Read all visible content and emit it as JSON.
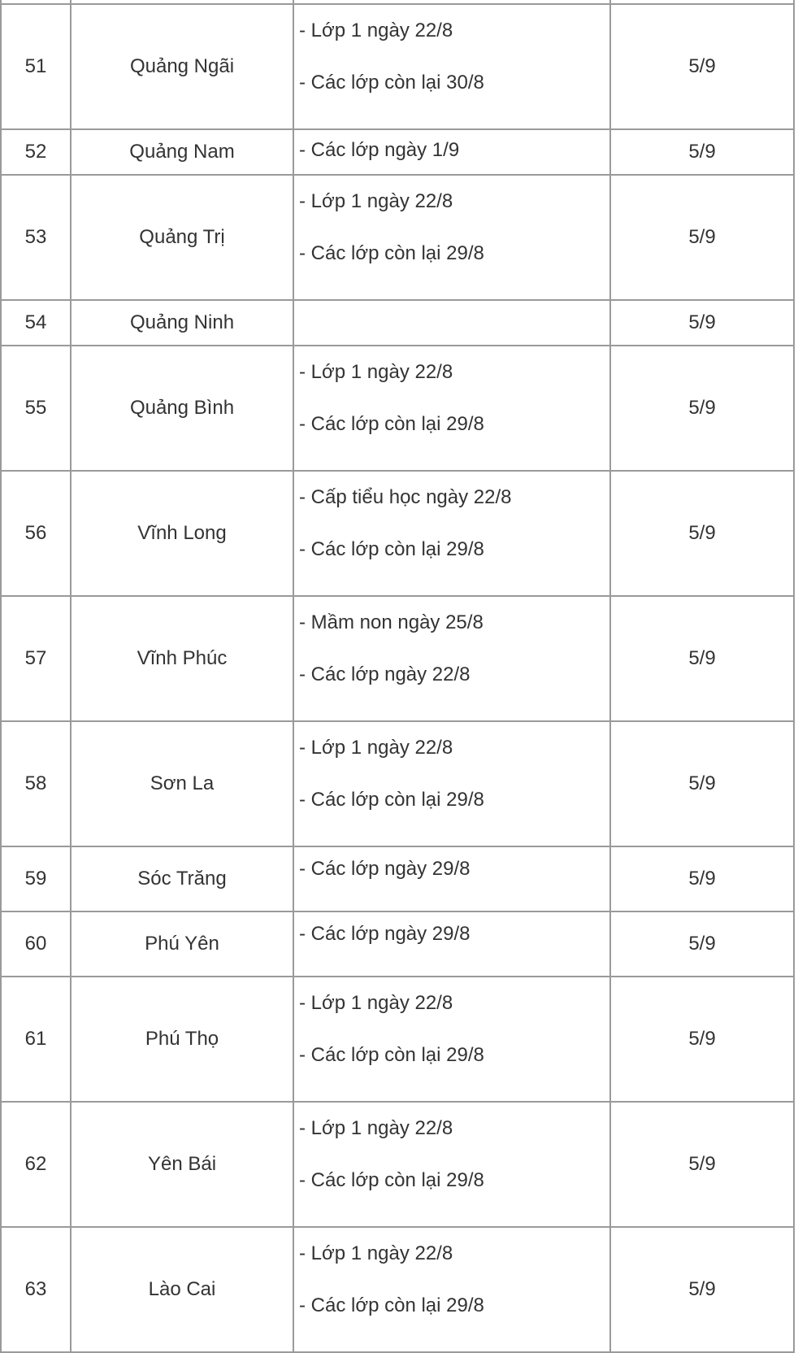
{
  "table": {
    "rows": [
      {
        "no": "51",
        "province": "Quảng Ngãi",
        "student_return": [
          "- Lớp 1 ngày 22/8",
          "- Các lớp còn lại 30/8"
        ],
        "opening": "5/9"
      },
      {
        "no": "52",
        "province": "Quảng Nam",
        "student_return": [
          "- Các lớp ngày 1/9"
        ],
        "opening": "5/9"
      },
      {
        "no": "53",
        "province": "Quảng Trị",
        "student_return": [
          "- Lớp 1 ngày 22/8",
          "- Các lớp còn lại 29/8"
        ],
        "opening": "5/9"
      },
      {
        "no": "54",
        "province": "Quảng Ninh",
        "student_return": [],
        "opening": "5/9"
      },
      {
        "no": "55",
        "province": "Quảng Bình",
        "student_return": [
          "- Lớp 1 ngày 22/8",
          "- Các lớp còn lại 29/8"
        ],
        "opening": "5/9"
      },
      {
        "no": "56",
        "province": "Vĩnh Long",
        "student_return": [
          "- Cấp tiểu học ngày 22/8",
          "- Các lớp còn lại 29/8"
        ],
        "opening": "5/9"
      },
      {
        "no": "57",
        "province": "Vĩnh Phúc",
        "student_return": [
          "- Mầm non ngày 25/8",
          "- Các lớp ngày 22/8"
        ],
        "opening": "5/9"
      },
      {
        "no": "58",
        "province": "Sơn La",
        "student_return": [
          "- Lớp 1 ngày 22/8",
          "- Các lớp còn lại 29/8"
        ],
        "opening": "5/9"
      },
      {
        "no": "59",
        "province": "Sóc Trăng",
        "student_return": [
          "- Các lớp ngày 29/8"
        ],
        "opening": "5/9"
      },
      {
        "no": "60",
        "province": "Phú Yên",
        "student_return": [
          "- Các lớp ngày 29/8"
        ],
        "opening": "5/9"
      },
      {
        "no": "61",
        "province": "Phú Thọ",
        "student_return": [
          "- Lớp 1 ngày 22/8",
          "- Các lớp còn lại 29/8"
        ],
        "opening": "5/9"
      },
      {
        "no": "62",
        "province": "Yên Bái",
        "student_return": [
          "- Lớp 1 ngày 22/8",
          "- Các lớp còn lại 29/8"
        ],
        "opening": "5/9"
      },
      {
        "no": "63",
        "province": "Lào Cai",
        "student_return": [
          "- Lớp 1 ngày 22/8",
          "- Các lớp còn lại 29/8"
        ],
        "opening": "5/9"
      }
    ]
  }
}
